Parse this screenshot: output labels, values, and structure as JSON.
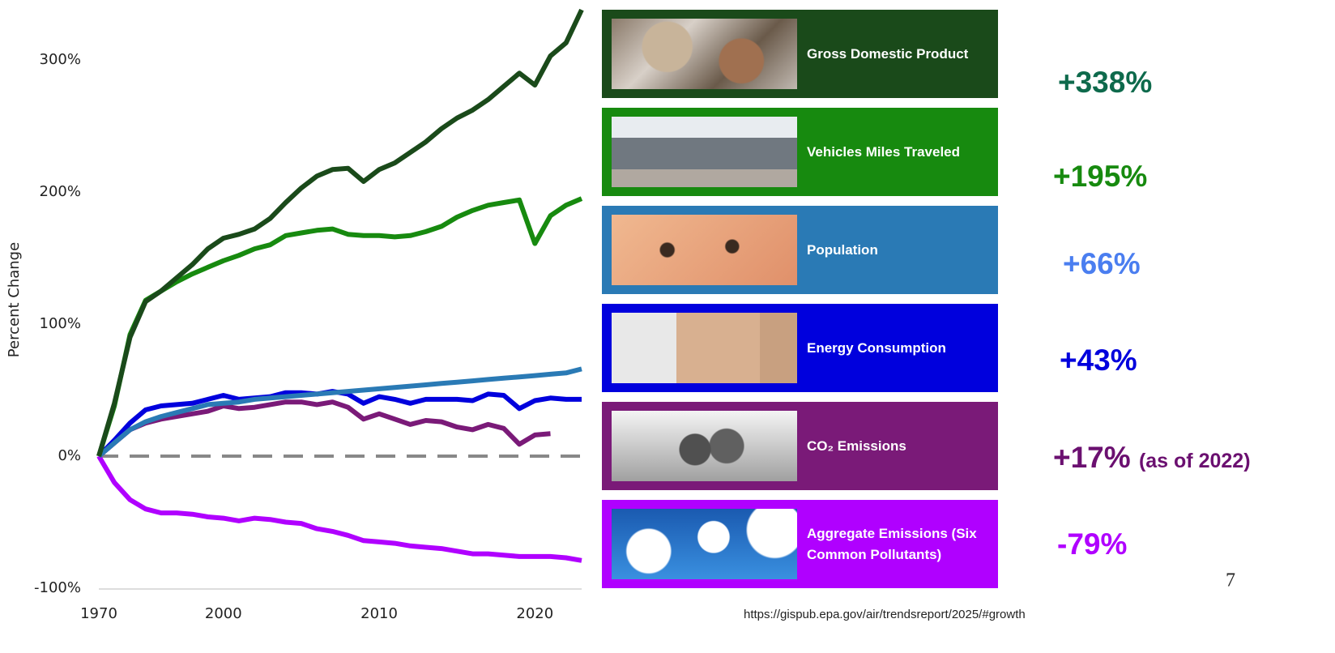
{
  "chart_data": {
    "type": "line",
    "y_label": "Percent Change",
    "categories": [
      "1970",
      null,
      null,
      null,
      null,
      null,
      null,
      null,
      "2000",
      null,
      null,
      null,
      null,
      null,
      null,
      null,
      null,
      null,
      "2010",
      null,
      null,
      null,
      null,
      null,
      null,
      null,
      null,
      null,
      "2020",
      null,
      null,
      null
    ],
    "ylim": [
      -108.6,
      345.4
    ],
    "yticks": [
      {
        "value": -100,
        "label": "-100%"
      },
      {
        "value": 0,
        "label": "0%"
      },
      {
        "value": 100,
        "label": "100%"
      },
      {
        "value": 200,
        "label": "200%"
      },
      {
        "value": 300,
        "label": "300%"
      }
    ],
    "zero_line": true,
    "series": [
      {
        "name": "Gross Domestic Product",
        "color": "#1a4a1a",
        "change": "+338%",
        "label_color": "#0e6a4c",
        "values": [
          0,
          40,
          90,
          117,
          125,
          135,
          145,
          157,
          165,
          168,
          172,
          180,
          192,
          203,
          212,
          217,
          218,
          208,
          217,
          222,
          230,
          238,
          248,
          256,
          262,
          270,
          280,
          290,
          281,
          303,
          313,
          338
        ]
      },
      {
        "name": "Vehicles Miles Traveled",
        "color": "#178a0f",
        "change": "+195%",
        "label_color": "#178a0f",
        "values": [
          0,
          38,
          92,
          118,
          125,
          132,
          138,
          143,
          148,
          152,
          157,
          160,
          167,
          169,
          171,
          172,
          168,
          167,
          167,
          166,
          167,
          170,
          174,
          181,
          186,
          190,
          192,
          194,
          161,
          182,
          190,
          195
        ]
      },
      {
        "name": "Population",
        "color": "#2a7ab5",
        "change": "+66%",
        "label_color": "#4a7ef0",
        "values": [
          0,
          10,
          20,
          26,
          30,
          33,
          36,
          39,
          40,
          41,
          43,
          44,
          45,
          46,
          47,
          48,
          49,
          50,
          51,
          52,
          53,
          54,
          55,
          56,
          57,
          58,
          59,
          60,
          61,
          62,
          63,
          66
        ]
      },
      {
        "name": "Energy Consumption",
        "color": "#0000dd",
        "change": "+43%",
        "label_color": "#0000dd",
        "values": [
          0,
          12,
          25,
          35,
          38,
          39,
          40,
          43,
          46,
          43,
          44,
          45,
          48,
          48,
          47,
          49,
          47,
          40,
          45,
          43,
          40,
          43,
          43,
          43,
          42,
          47,
          46,
          36,
          42,
          44,
          43,
          43
        ]
      },
      {
        "name": "CO₂ Emissions",
        "color": "#7a1a78",
        "change": "+17%",
        "note": "(as of 2022)",
        "label_color": "#6b1070",
        "values": [
          0,
          10,
          20,
          25,
          28,
          30,
          32,
          34,
          38,
          36,
          37,
          39,
          41,
          41,
          39,
          41,
          37,
          28,
          32,
          28,
          24,
          27,
          26,
          22,
          20,
          24,
          21,
          9,
          16,
          17,
          null,
          null
        ]
      },
      {
        "name": "Aggregate Emissions (Six Common Pollutants)",
        "color": "#b000ff",
        "change": "-79%",
        "label_color": "#b000ff",
        "values": [
          0,
          -20,
          -33,
          -40,
          -43,
          -43,
          -44,
          -46,
          -47,
          -49,
          -47,
          -48,
          -50,
          -51,
          -55,
          -57,
          -60,
          -64,
          -65,
          -66,
          -68,
          -69,
          -70,
          -72,
          -74,
          -74,
          -75,
          -76,
          -76,
          -76,
          -77,
          -79
        ]
      }
    ]
  },
  "footer": {
    "source": "https://gispub.epa.gov/air/trendsreport/2025/#growth",
    "page": "7"
  }
}
